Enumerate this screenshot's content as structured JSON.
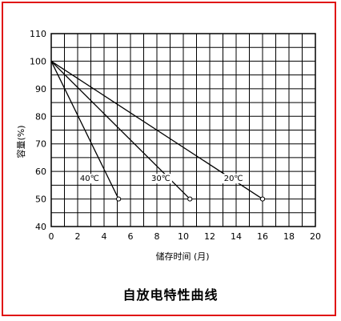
{
  "frame_color": "#e01010",
  "caption": "自放电特性曲线",
  "chart_data": {
    "type": "line",
    "title": "自放电特性曲线",
    "xlabel": "储存时间 (月)",
    "ylabel": "容量(%)",
    "xlim": [
      0,
      20
    ],
    "ylim": [
      40,
      110
    ],
    "xticks": [
      "0",
      "2",
      "4",
      "6",
      "8",
      "10",
      "12",
      "14",
      "16",
      "18",
      "20"
    ],
    "yticks": [
      "40",
      "50",
      "60",
      "70",
      "80",
      "90",
      "100",
      "110"
    ],
    "grid": true,
    "series": [
      {
        "name": "40℃",
        "x": [
          0,
          5.1
        ],
        "y": [
          100,
          50
        ]
      },
      {
        "name": "30℃",
        "x": [
          0,
          10.5
        ],
        "y": [
          100,
          50
        ]
      },
      {
        "name": "20℃",
        "x": [
          0,
          16
        ],
        "y": [
          100,
          50
        ]
      }
    ]
  }
}
